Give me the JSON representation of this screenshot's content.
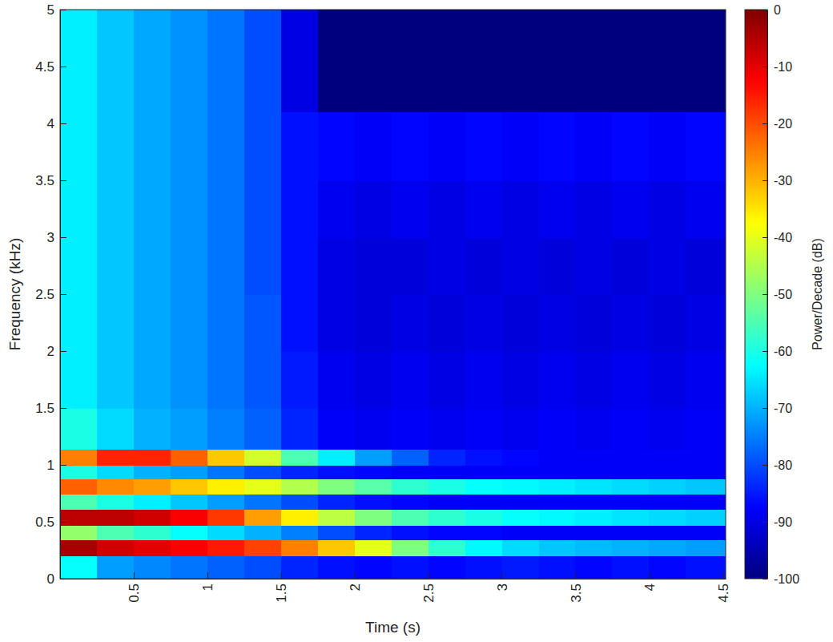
{
  "chart_data": {
    "type": "heatmap",
    "x_label": "Time (s)",
    "y_label": "Frequency (kHz)",
    "color": "jet",
    "xlim": [
      0,
      4.52
    ],
    "ylim": [
      0,
      5
    ],
    "xticks": [
      0.5,
      1,
      1.5,
      2,
      2.5,
      3,
      3.5,
      4,
      4.5
    ],
    "yticks": [
      0,
      0.5,
      1,
      1.5,
      2,
      2.5,
      3,
      3.5,
      4,
      4.5,
      5
    ],
    "x_edges": [
      0,
      0.25,
      0.5,
      0.75,
      1,
      1.25,
      1.5,
      1.75,
      2,
      2.25,
      2.5,
      2.75,
      3,
      3.25,
      3.5,
      3.75,
      4,
      4.25,
      4.52
    ],
    "y_edges": [
      0,
      0.2,
      0.34,
      0.47,
      0.61,
      0.74,
      0.88,
      1.0,
      1.14,
      1.5,
      2,
      2.5,
      3,
      3.5,
      4.1,
      5
    ],
    "cells": [
      [
        -62,
        -72,
        -74,
        -76,
        -78,
        -80,
        -84,
        -86,
        -87,
        -86,
        -87,
        -86,
        -85,
        -86,
        -87,
        -86,
        -87,
        -86
      ],
      [
        -4,
        -8,
        -10,
        -12,
        -15,
        -19,
        -25,
        -32,
        -40,
        -50,
        -58,
        -63,
        -66,
        -68,
        -69,
        -70,
        -71,
        -72
      ],
      [
        -48,
        -55,
        -58,
        -62,
        -66,
        -70,
        -75,
        -80,
        -84,
        -86,
        -87,
        -87,
        -88,
        -88,
        -88,
        -88,
        -88,
        -88
      ],
      [
        -6,
        -6,
        -8,
        -12,
        -18,
        -28,
        -36,
        -44,
        -50,
        -55,
        -58,
        -60,
        -62,
        -63,
        -64,
        -65,
        -66,
        -67
      ],
      [
        -55,
        -60,
        -64,
        -68,
        -72,
        -76,
        -80,
        -84,
        -86,
        -87,
        -88,
        -88,
        -88,
        -88,
        -88,
        -88,
        -88,
        -88
      ],
      [
        -22,
        -26,
        -28,
        -32,
        -36,
        -40,
        -45,
        -50,
        -54,
        -58,
        -60,
        -62,
        -63,
        -64,
        -65,
        -66,
        -67,
        -68
      ],
      [
        -60,
        -66,
        -70,
        -72,
        -76,
        -80,
        -84,
        -86,
        -87,
        -88,
        -88,
        -88,
        -88,
        -88,
        -88,
        -88,
        -88,
        -88
      ],
      [
        -25,
        -16,
        -16,
        -22,
        -32,
        -42,
        -55,
        -64,
        -72,
        -78,
        -84,
        -86,
        -87,
        -88,
        -88,
        -88,
        -88,
        -88
      ],
      [
        -60,
        -66,
        -70,
        -72,
        -75,
        -78,
        -84,
        -88,
        -89,
        -88,
        -89,
        -88,
        -89,
        -88,
        -89,
        -88,
        -89,
        -88
      ],
      [
        -64,
        -68,
        -71,
        -73,
        -76,
        -79,
        -85,
        -89,
        -90,
        -89,
        -90,
        -89,
        -90,
        -89,
        -90,
        -89,
        -90,
        -89
      ],
      [
        -64,
        -68,
        -71,
        -73,
        -76,
        -79,
        -86,
        -90,
        -91,
        -90,
        -91,
        -90,
        -91,
        -90,
        -91,
        -90,
        -91,
        -90
      ],
      [
        -64,
        -68,
        -71,
        -73,
        -76,
        -80,
        -86,
        -90,
        -91,
        -91,
        -90,
        -91,
        -90,
        -91,
        -90,
        -91,
        -90,
        -91
      ],
      [
        -64,
        -68,
        -71,
        -73,
        -76,
        -80,
        -86,
        -89,
        -90,
        -89,
        -90,
        -89,
        -90,
        -89,
        -90,
        -89,
        -90,
        -89
      ],
      [
        -64,
        -68,
        -71,
        -73,
        -76,
        -80,
        -86,
        -87,
        -88,
        -87,
        -88,
        -87,
        -88,
        -87,
        -88,
        -87,
        -88,
        -87
      ],
      [
        -64,
        -68,
        -71,
        -73,
        -76,
        -80,
        -90,
        -100,
        -100,
        -100,
        -100,
        -100,
        -100,
        -100,
        -100,
        -100,
        -100,
        -100
      ]
    ],
    "colorbar": {
      "label": "Power/Decade (dB)",
      "clim": [
        -100,
        0
      ],
      "ticks": [
        0,
        -10,
        -20,
        -30,
        -40,
        -50,
        -60,
        -70,
        -80,
        -90,
        -100
      ]
    }
  }
}
